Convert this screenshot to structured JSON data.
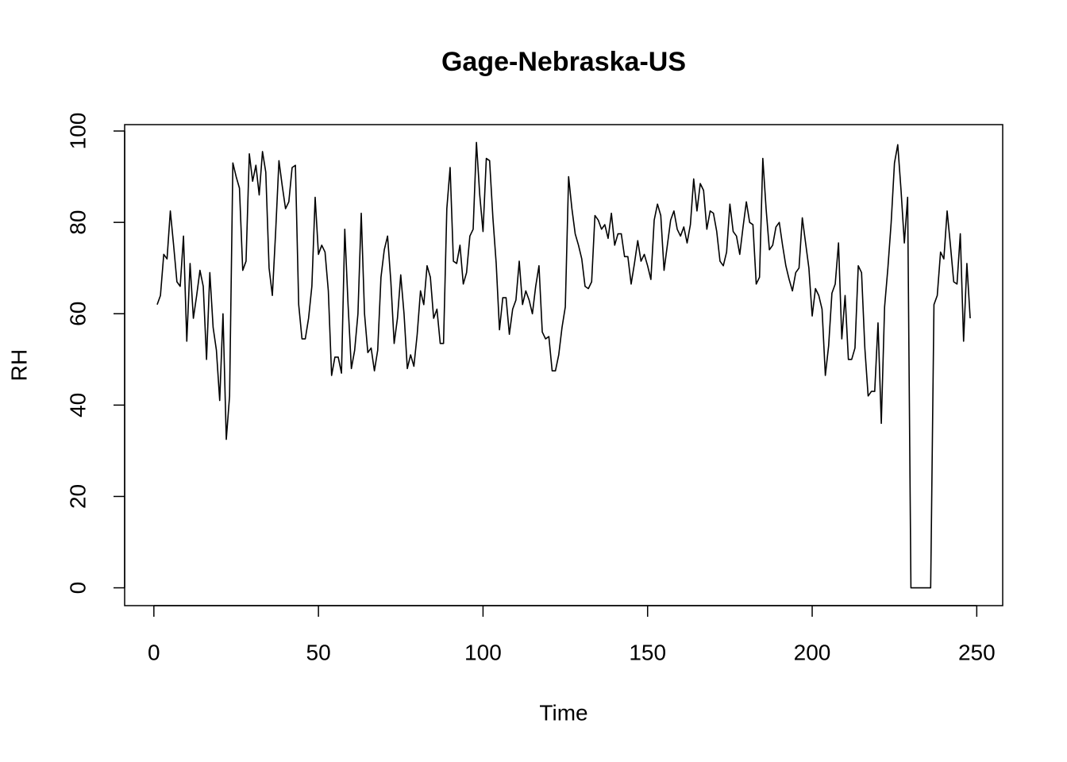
{
  "chart_data": {
    "type": "line",
    "title": "Gage-Nebraska-US",
    "x_label": "Time",
    "y_label": "RH",
    "color": "#000000",
    "x": [
      1,
      2,
      3,
      4,
      5,
      6,
      7,
      8,
      9,
      10,
      11,
      12,
      13,
      14,
      15,
      16,
      17,
      18,
      19,
      20,
      21,
      22,
      23,
      24,
      25,
      26,
      27,
      28,
      29,
      30,
      31,
      32,
      33,
      34,
      35,
      36,
      37,
      38,
      39,
      40,
      41,
      42,
      43,
      44,
      45,
      46,
      47,
      48,
      49,
      50,
      51,
      52,
      53,
      54,
      55,
      56,
      57,
      58,
      59,
      60,
      61,
      62,
      63,
      64,
      65,
      66,
      67,
      68,
      69,
      70,
      71,
      72,
      73,
      74,
      75,
      76,
      77,
      78,
      79,
      80,
      81,
      82,
      83,
      84,
      85,
      86,
      87,
      88,
      89,
      90,
      91,
      92,
      93,
      94,
      95,
      96,
      97,
      98,
      99,
      100,
      101,
      102,
      103,
      104,
      105,
      106,
      107,
      108,
      109,
      110,
      111,
      112,
      113,
      114,
      115,
      116,
      117,
      118,
      119,
      120,
      121,
      122,
      123,
      124,
      125,
      126,
      127,
      128,
      129,
      130,
      131,
      132,
      133,
      134,
      135,
      136,
      137,
      138,
      139,
      140,
      141,
      142,
      143,
      144,
      145,
      146,
      147,
      148,
      149,
      150,
      151,
      152,
      153,
      154,
      155,
      156,
      157,
      158,
      159,
      160,
      161,
      162,
      163,
      164,
      165,
      166,
      167,
      168,
      169,
      170,
      171,
      172,
      173,
      174,
      175,
      176,
      177,
      178,
      179,
      180,
      181,
      182,
      183,
      184,
      185,
      186,
      187,
      188,
      189,
      190,
      191,
      192,
      193,
      194,
      195,
      196,
      197,
      198,
      199,
      200,
      201,
      202,
      203,
      204,
      205,
      206,
      207,
      208,
      209,
      210,
      211,
      212,
      213,
      214,
      215,
      216,
      217,
      218,
      219,
      220,
      221,
      222,
      223,
      224,
      225,
      226,
      227,
      228,
      229,
      230,
      231,
      232,
      233,
      234,
      235,
      236,
      237,
      238,
      239,
      240,
      241,
      242,
      243,
      244,
      245,
      246,
      247,
      248
    ],
    "values": [
      62,
      64,
      73,
      72,
      82.5,
      75,
      67,
      66,
      77,
      54,
      71,
      59,
      64,
      69.5,
      66,
      50,
      69,
      57,
      52,
      41,
      60,
      32.5,
      42,
      93,
      90,
      87.5,
      69.5,
      71.5,
      95,
      89,
      92.5,
      86,
      95.5,
      91,
      70,
      64,
      78,
      93.5,
      88,
      83,
      84.5,
      92,
      92.5,
      62,
      54.5,
      54.5,
      59,
      66,
      85.5,
      73,
      75,
      73.5,
      65,
      46.5,
      50.5,
      50.5,
      47,
      78.5,
      62,
      48,
      52,
      60,
      82,
      60,
      51.5,
      52.5,
      47.5,
      52,
      68,
      74,
      77,
      67,
      53.5,
      59,
      68.5,
      60,
      48,
      51,
      48.5,
      55.5,
      65,
      62,
      70.5,
      68,
      59,
      61,
      53.5,
      53.5,
      83,
      92,
      71.5,
      71,
      75,
      66.5,
      69,
      77,
      78.5,
      97.5,
      86,
      78,
      94,
      93.5,
      81,
      71,
      56.5,
      63.5,
      63.5,
      55.5,
      61,
      63,
      71.5,
      62,
      65,
      63,
      60,
      66,
      70.5,
      56,
      54.5,
      55,
      47.5,
      47.5,
      51,
      57,
      61.5,
      90,
      83,
      77.5,
      75,
      72,
      66,
      65.5,
      67,
      81.5,
      80.5,
      78.5,
      79.5,
      76.5,
      82,
      75,
      77.5,
      77.5,
      72.5,
      72.5,
      66.5,
      71,
      76,
      71.5,
      73,
      70.5,
      67.5,
      80.5,
      84,
      81.5,
      69.5,
      75,
      80.5,
      82.5,
      78.5,
      77,
      79,
      75.5,
      79.5,
      89.5,
      82.5,
      88.5,
      87,
      78.5,
      82.5,
      82,
      78,
      71.5,
      70.5,
      73.5,
      84,
      78,
      77,
      73,
      79,
      84.5,
      80,
      79.5,
      66.5,
      68,
      94,
      83,
      74,
      75,
      79,
      80,
      75,
      70.5,
      67.5,
      65,
      69,
      70,
      81,
      75.5,
      70,
      59.5,
      65.5,
      64,
      61,
      46.5,
      53,
      64.5,
      66.5,
      75.5,
      54.5,
      64,
      50,
      50,
      52.5,
      70.5,
      69,
      52.5,
      42,
      43,
      43,
      58,
      36,
      61.5,
      70,
      80,
      93,
      97,
      87,
      75.5,
      85.5,
      0,
      0,
      0,
      0,
      0,
      0,
      0,
      62,
      64,
      73.5,
      72,
      82.5,
      75,
      67,
      66.5,
      77.5,
      54,
      71,
      59
    ],
    "xlim": [
      -8.88,
      257.88
    ],
    "ylim": [
      -3.9,
      101.4
    ],
    "xticks": [
      0,
      50,
      100,
      150,
      200,
      250
    ],
    "yticks": [
      0,
      20,
      40,
      60,
      80,
      100
    ]
  }
}
